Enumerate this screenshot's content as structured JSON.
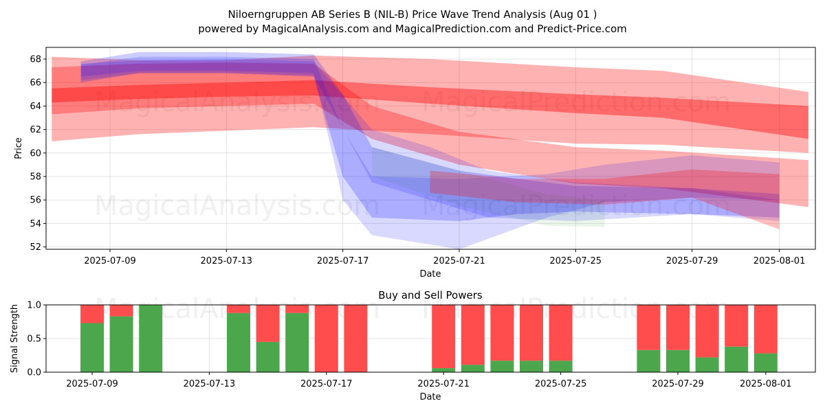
{
  "title": "Niloerngruppen AB Series B (NIL-B) Price Wave Trend Analysis (Aug 01 )",
  "subtitle": "powered by MagicalAnalysis.com and MagicalPrediction.com and Predict-Price.com",
  "watermarks": [
    "MagicalAnalysis.com",
    "MagicalPrediction.com"
  ],
  "chart_data": [
    {
      "type": "area",
      "title": "",
      "xlabel": "Date",
      "ylabel": "Price",
      "ylim": [
        52,
        69
      ],
      "yticks": [
        52,
        54,
        56,
        58,
        60,
        62,
        64,
        66,
        68
      ],
      "x_tick_dates": [
        "2025-07-09",
        "2025-07-13",
        "2025-07-17",
        "2025-07-21",
        "2025-07-25",
        "2025-07-29",
        "2025-08-01"
      ],
      "grid": true,
      "colors": {
        "red_band": "#ff0000",
        "blue_band": "#0000ff",
        "green_band": "#008000"
      },
      "bands": [
        {
          "color": "#ff0000",
          "opacity": 0.3,
          "x": [
            "2025-07-07",
            "2025-07-10",
            "2025-07-13",
            "2025-07-16",
            "2025-07-20",
            "2025-07-25",
            "2025-07-28",
            "2025-08-02"
          ],
          "upper": [
            68.2,
            67.9,
            67.9,
            68.3,
            68.0,
            67.3,
            67.0,
            65.2
          ],
          "lower": [
            61.0,
            61.6,
            61.9,
            62.2,
            61.6,
            60.8,
            60.7,
            60.0
          ]
        },
        {
          "color": "#ff0000",
          "opacity": 0.4,
          "x": [
            "2025-07-07",
            "2025-07-10",
            "2025-07-13",
            "2025-07-16",
            "2025-07-20",
            "2025-07-25",
            "2025-07-28",
            "2025-08-02"
          ],
          "upper": [
            65.5,
            65.8,
            66.0,
            66.2,
            65.6,
            65.0,
            64.7,
            64.0
          ],
          "lower": [
            64.3,
            64.6,
            64.8,
            64.9,
            64.2,
            63.4,
            63.0,
            61.2
          ]
        },
        {
          "color": "#ff0000",
          "opacity": 0.3,
          "x": [
            "2025-07-07",
            "2025-07-10",
            "2025-07-13",
            "2025-07-16",
            "2025-07-18",
            "2025-07-21",
            "2025-07-25",
            "2025-07-28",
            "2025-08-02"
          ],
          "upper": [
            67.3,
            67.6,
            67.7,
            67.6,
            64.0,
            61.8,
            60.5,
            60.2,
            59.4
          ],
          "lower": [
            63.3,
            63.8,
            64.0,
            64.2,
            61.2,
            59.0,
            57.4,
            57.0,
            55.4
          ]
        },
        {
          "color": "#0000ff",
          "opacity": 0.2,
          "x": [
            "2025-07-08",
            "2025-07-10",
            "2025-07-13",
            "2025-07-16",
            "2025-07-17",
            "2025-07-18",
            "2025-07-21",
            "2025-07-23",
            "2025-07-25",
            "2025-07-29",
            "2025-08-01"
          ],
          "upper": [
            67.8,
            68.6,
            68.6,
            68.4,
            65.0,
            60.5,
            58.5,
            57.8,
            57.2,
            57.0,
            56.5
          ],
          "lower": [
            66.0,
            66.8,
            66.8,
            66.5,
            58.0,
            54.5,
            54.2,
            54.8,
            55.0,
            54.8,
            54.5
          ]
        },
        {
          "color": "#0000ff",
          "opacity": 0.15,
          "x": [
            "2025-07-08",
            "2025-07-10",
            "2025-07-13",
            "2025-07-16",
            "2025-07-17",
            "2025-07-18",
            "2025-07-21",
            "2025-07-24",
            "2025-07-26",
            "2025-07-29",
            "2025-08-01"
          ],
          "upper": [
            67.5,
            68.2,
            68.2,
            68.0,
            62.0,
            58.0,
            57.8,
            58.2,
            59.0,
            59.8,
            59.2
          ],
          "lower": [
            66.5,
            67.0,
            67.0,
            66.8,
            56.0,
            53.0,
            51.8,
            54.5,
            55.8,
            56.2,
            56.0
          ]
        },
        {
          "color": "#0000ff",
          "opacity": 0.15,
          "x": [
            "2025-07-08",
            "2025-07-10",
            "2025-07-13",
            "2025-07-16",
            "2025-07-18",
            "2025-07-20",
            "2025-07-22",
            "2025-07-25",
            "2025-07-29",
            "2025-08-01"
          ],
          "upper": [
            67.6,
            67.9,
            68.0,
            67.8,
            62.0,
            60.5,
            58.5,
            57.5,
            57.0,
            56.0
          ],
          "lower": [
            66.2,
            66.8,
            66.8,
            66.6,
            57.5,
            56.0,
            54.5,
            54.2,
            54.8,
            54.2
          ]
        },
        {
          "color": "#008000",
          "opacity": 0.08,
          "x": [
            "2025-07-18",
            "2025-07-21",
            "2025-07-24",
            "2025-07-26"
          ],
          "upper": [
            60.5,
            58.5,
            56.5,
            56.0
          ],
          "lower": [
            58.0,
            55.5,
            53.8,
            53.7
          ]
        },
        {
          "color": "#ff0000",
          "opacity": 0.25,
          "x": [
            "2025-07-20",
            "2025-07-23",
            "2025-07-26",
            "2025-07-29",
            "2025-08-01"
          ],
          "upper": [
            58.5,
            57.8,
            57.8,
            58.6,
            58.2
          ],
          "lower": [
            56.6,
            55.8,
            55.6,
            56.2,
            53.5
          ]
        }
      ]
    },
    {
      "type": "bar",
      "title": "Buy and Sell Powers",
      "xlabel": "Date",
      "ylabel": "Signal Strength",
      "ylim": [
        0,
        1
      ],
      "yticks": [
        "0.0",
        "0.5",
        "1.0"
      ],
      "x_tick_dates": [
        "2025-07-09",
        "2025-07-13",
        "2025-07-17",
        "2025-07-21",
        "2025-07-25",
        "2025-07-29",
        "2025-08-01"
      ],
      "grid": true,
      "colors": {
        "buy": "#4ca64c",
        "sell": "#ff4c4c"
      },
      "categories": [
        "2025-07-09",
        "2025-07-10",
        "2025-07-11",
        "2025-07-14",
        "2025-07-15",
        "2025-07-16",
        "2025-07-17",
        "2025-07-18",
        "2025-07-21",
        "2025-07-22",
        "2025-07-23",
        "2025-07-24",
        "2025-07-25",
        "2025-07-28",
        "2025-07-29",
        "2025-07-30",
        "2025-07-31",
        "2025-08-01"
      ],
      "series": [
        {
          "values": [
            0.73,
            0.83,
            1.0,
            0.88,
            0.45,
            0.88,
            0.0,
            0.0,
            0.06,
            0.11,
            0.17,
            0.17,
            0.17,
            0.33,
            0.33,
            0.22,
            0.38,
            0.28
          ]
        },
        {
          "values": [
            0.27,
            0.17,
            0.0,
            0.12,
            0.55,
            0.12,
            1.0,
            1.0,
            0.94,
            0.89,
            0.83,
            0.83,
            0.83,
            0.67,
            0.67,
            0.78,
            0.62,
            0.72
          ]
        }
      ]
    }
  ]
}
